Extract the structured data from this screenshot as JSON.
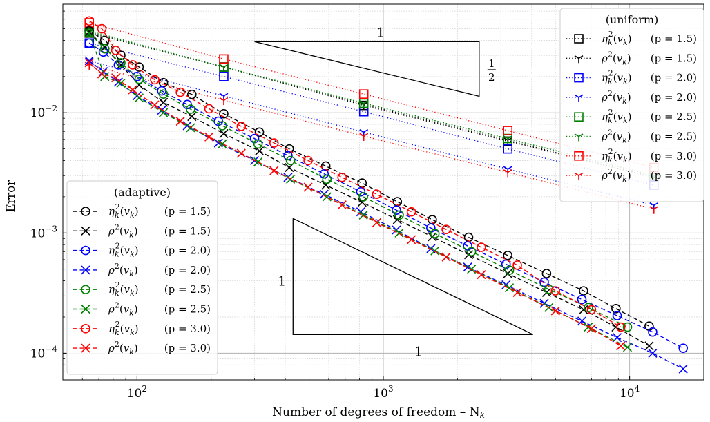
{
  "chart_data": {
    "type": "line",
    "xscale": "log",
    "yscale": "log",
    "xlim": [
      50,
      20000
    ],
    "ylim": [
      6e-05,
      0.08
    ],
    "grid": true,
    "xlabel": "Number of degrees of freedom – N",
    "xlabel_sub": "k",
    "ylabel": "Error",
    "x_ticks": [
      {
        "value": 100,
        "base": "10",
        "exp": "2"
      },
      {
        "value": 1000,
        "base": "10",
        "exp": "3"
      },
      {
        "value": 10000,
        "base": "10",
        "exp": "4"
      }
    ],
    "y_ticks": [
      {
        "value": 0.0001,
        "base": "10",
        "exp": "−4"
      },
      {
        "value": 0.001,
        "base": "10",
        "exp": "−3"
      },
      {
        "value": 0.01,
        "base": "10",
        "exp": "−2"
      }
    ],
    "uniform_legend": {
      "title": "(uniform)",
      "placement": "top-right",
      "entries": [
        {
          "label": "η_k²(v_k)",
          "p": "(p = 1.5)",
          "color": "#000000",
          "marker": "square"
        },
        {
          "label": "ρ²(v_k)",
          "p": "(p = 1.5)",
          "color": "#000000",
          "marker": "tri_down"
        },
        {
          "label": "η_k²(v_k)",
          "p": "(p = 2.0)",
          "color": "#0000ff",
          "marker": "square"
        },
        {
          "label": "ρ²(v_k)",
          "p": "(p = 2.0)",
          "color": "#0000ff",
          "marker": "tri_down"
        },
        {
          "label": "η_k²(v_k)",
          "p": "(p = 2.5)",
          "color": "#008000",
          "marker": "square"
        },
        {
          "label": "ρ²(v_k)",
          "p": "(p = 2.5)",
          "color": "#008000",
          "marker": "tri_down"
        },
        {
          "label": "η_k²(v_k)",
          "p": "(p = 3.0)",
          "color": "#ff0000",
          "marker": "square"
        },
        {
          "label": "ρ²(v_k)",
          "p": "(p = 3.0)",
          "color": "#ff0000",
          "marker": "tri_down"
        }
      ]
    },
    "adaptive_legend": {
      "title": "(adaptive)",
      "placement": "lower-left",
      "entries": [
        {
          "label": "η_k²(v_k)",
          "p": "(p = 1.5)",
          "color": "#000000",
          "marker": "circle"
        },
        {
          "label": "ρ²(v_k)",
          "p": "(p = 1.5)",
          "color": "#000000",
          "marker": "x"
        },
        {
          "label": "η_k²(v_k)",
          "p": "(p = 2.0)",
          "color": "#0000ff",
          "marker": "circle"
        },
        {
          "label": "ρ²(v_k)",
          "p": "(p = 2.0)",
          "color": "#0000ff",
          "marker": "x"
        },
        {
          "label": "η_k²(v_k)",
          "p": "(p = 2.5)",
          "color": "#008000",
          "marker": "circle"
        },
        {
          "label": "ρ²(v_k)",
          "p": "(p = 2.5)",
          "color": "#008000",
          "marker": "x"
        },
        {
          "label": "η_k²(v_k)",
          "p": "(p = 3.0)",
          "color": "#ff0000",
          "marker": "circle"
        },
        {
          "label": "ρ²(v_k)",
          "p": "(p = 3.0)",
          "color": "#ff0000",
          "marker": "x"
        }
      ]
    },
    "slope_triangles": [
      {
        "orientation": "upper",
        "run_label": "1",
        "rise_label": "1/2",
        "rise_num": "1",
        "rise_den": "2",
        "x": [
          300,
          2450
        ],
        "y": [
          0.039,
          0.0137
        ]
      },
      {
        "orientation": "lower",
        "run_label": "1",
        "rise_label": "1",
        "x": [
          430,
          4050
        ],
        "y": [
          0.00132,
          0.000143
        ]
      }
    ],
    "series": [
      {
        "kind": "uniform",
        "quantity": "eta",
        "p": "1.5",
        "color": "#000000",
        "marker": "square",
        "x": [
          64,
          225,
          833,
          3201,
          12545
        ],
        "y": [
          0.046,
          0.024,
          0.0115,
          0.0058,
          0.0029
        ]
      },
      {
        "kind": "uniform",
        "quantity": "rho",
        "p": "1.5",
        "color": "#000000",
        "marker": "tri_down",
        "x": [
          64,
          225,
          833,
          3201,
          12545
        ],
        "y": [
          0.047,
          0.024,
          0.0117,
          0.0059,
          0.0029
        ]
      },
      {
        "kind": "uniform",
        "quantity": "eta",
        "p": "2.0",
        "color": "#0000ff",
        "marker": "square",
        "x": [
          64,
          225,
          833,
          3201,
          12545
        ],
        "y": [
          0.038,
          0.02,
          0.0102,
          0.005,
          0.0025
        ]
      },
      {
        "kind": "uniform",
        "quantity": "rho",
        "p": "2.0",
        "color": "#0000ff",
        "marker": "tri_down",
        "x": [
          64,
          225,
          833,
          3201,
          12545
        ],
        "y": [
          0.027,
          0.0138,
          0.0069,
          0.0034,
          0.0017
        ]
      },
      {
        "kind": "uniform",
        "quantity": "eta",
        "p": "2.5",
        "color": "#008000",
        "marker": "square",
        "x": [
          64,
          225,
          833,
          3201,
          12545
        ],
        "y": [
          0.047,
          0.024,
          0.012,
          0.0061,
          0.003
        ]
      },
      {
        "kind": "uniform",
        "quantity": "rho",
        "p": "2.5",
        "color": "#008000",
        "marker": "tri_down",
        "x": [
          64,
          225,
          833,
          3201,
          12545
        ],
        "y": [
          0.048,
          0.024,
          0.012,
          0.0061,
          0.003
        ]
      },
      {
        "kind": "uniform",
        "quantity": "eta",
        "p": "3.0",
        "color": "#ff0000",
        "marker": "square",
        "x": [
          64,
          225,
          833,
          3201,
          12545
        ],
        "y": [
          0.056,
          0.028,
          0.0143,
          0.0071,
          0.0035
        ]
      },
      {
        "kind": "uniform",
        "quantity": "rho",
        "p": "3.0",
        "color": "#ff0000",
        "marker": "tri_down",
        "x": [
          64,
          225,
          833,
          3201,
          12545
        ],
        "y": [
          0.025,
          0.0127,
          0.0064,
          0.0032,
          0.00158
        ]
      },
      {
        "kind": "adaptive",
        "quantity": "eta",
        "p": "1.5",
        "color": "#000000",
        "marker": "circle",
        "x": [
          64,
          74,
          86,
          102,
          128,
          167,
          225,
          314,
          415,
          584,
          820,
          1140,
          1580,
          2220,
          3200,
          4600,
          6500,
          8800,
          12000
        ],
        "y": [
          0.048,
          0.04,
          0.03,
          0.024,
          0.0178,
          0.0142,
          0.0098,
          0.0069,
          0.005,
          0.0036,
          0.0026,
          0.00182,
          0.00129,
          0.00092,
          0.00065,
          0.00046,
          0.00033,
          0.000235,
          0.000168
        ]
      },
      {
        "kind": "adaptive",
        "quantity": "rho",
        "p": "1.5",
        "color": "#000000",
        "marker": "x",
        "x": [
          64,
          74,
          86,
          102,
          128,
          167,
          225,
          314,
          415,
          584,
          820,
          1140,
          1580,
          2220,
          3200,
          4600,
          6500,
          8800,
          12000
        ],
        "y": [
          0.047,
          0.035,
          0.025,
          0.017,
          0.0122,
          0.0093,
          0.0067,
          0.0048,
          0.0035,
          0.0025,
          0.0018,
          0.00129,
          0.00093,
          0.00066,
          0.00046,
          0.00032,
          0.00023,
          0.000165,
          0.000115
        ]
      },
      {
        "kind": "adaptive",
        "quantity": "eta",
        "p": "2.0",
        "color": "#0000ff",
        "marker": "circle",
        "x": [
          64,
          73,
          84,
          100,
          126,
          160,
          214,
          300,
          410,
          575,
          810,
          1130,
          1560,
          2200,
          3150,
          4500,
          6400,
          8900,
          12400,
          16500
        ],
        "y": [
          0.038,
          0.032,
          0.025,
          0.02,
          0.0152,
          0.0117,
          0.0085,
          0.0061,
          0.0044,
          0.0031,
          0.0022,
          0.00155,
          0.0011,
          0.00078,
          0.00055,
          0.00039,
          0.00028,
          0.000205,
          0.00015,
          0.00011
        ]
      },
      {
        "kind": "adaptive",
        "quantity": "rho",
        "p": "2.0",
        "color": "#0000ff",
        "marker": "x",
        "x": [
          64,
          73,
          84,
          100,
          126,
          160,
          214,
          300,
          410,
          575,
          810,
          1130,
          1560,
          2200,
          3150,
          4500,
          6400,
          8900,
          12400,
          16500
        ],
        "y": [
          0.027,
          0.022,
          0.018,
          0.0138,
          0.0105,
          0.0078,
          0.0056,
          0.004,
          0.0029,
          0.0021,
          0.0015,
          0.00106,
          0.00074,
          0.00052,
          0.00037,
          0.00026,
          0.000185,
          0.000135,
          0.0001,
          7.4e-05
        ]
      },
      {
        "kind": "adaptive",
        "quantity": "eta",
        "p": "2.5",
        "color": "#008000",
        "marker": "circle",
        "x": [
          64,
          74,
          86,
          102,
          128,
          165,
          222,
          310,
          420,
          590,
          830,
          1160,
          1620,
          2280,
          3250,
          4700,
          6800,
          9800
        ],
        "y": [
          0.046,
          0.034,
          0.026,
          0.019,
          0.0143,
          0.0107,
          0.0078,
          0.0055,
          0.004,
          0.0028,
          0.002,
          0.00141,
          0.00099,
          0.0007,
          0.00049,
          0.00034,
          0.00024,
          0.000165
        ]
      },
      {
        "kind": "adaptive",
        "quantity": "rho",
        "p": "2.5",
        "color": "#008000",
        "marker": "x",
        "x": [
          64,
          74,
          86,
          102,
          128,
          165,
          222,
          310,
          420,
          590,
          830,
          1160,
          1620,
          2280,
          3250,
          4700,
          6800,
          9800
        ],
        "y": [
          0.046,
          0.02,
          0.0176,
          0.0133,
          0.01,
          0.0075,
          0.0055,
          0.0039,
          0.0028,
          0.002,
          0.00141,
          0.001,
          0.00071,
          0.0005,
          0.00035,
          0.00024,
          0.000165,
          0.000112
        ]
      },
      {
        "kind": "adaptive",
        "quantity": "eta",
        "p": "3.0",
        "color": "#ff0000",
        "marker": "circle",
        "x": [
          64,
          72,
          82,
          96,
          118,
          150,
          196,
          265,
          360,
          495,
          680,
          940,
          1300,
          1800,
          2500,
          3500,
          5000,
          7000,
          9200
        ],
        "y": [
          0.058,
          0.05,
          0.033,
          0.025,
          0.0188,
          0.0148,
          0.0108,
          0.0077,
          0.0056,
          0.004,
          0.0029,
          0.0021,
          0.0015,
          0.00107,
          0.00076,
          0.00054,
          0.00033,
          0.00023,
          0.000165
        ]
      },
      {
        "kind": "adaptive",
        "quantity": "rho",
        "p": "3.0",
        "color": "#ff0000",
        "marker": "x",
        "x": [
          64,
          72,
          82,
          96,
          118,
          150,
          196,
          265,
          360,
          495,
          680,
          940,
          1300,
          1800,
          2500,
          3500,
          5000,
          7000,
          9200
        ],
        "y": [
          0.026,
          0.021,
          0.0195,
          0.0155,
          0.0116,
          0.0085,
          0.0063,
          0.0046,
          0.0033,
          0.0024,
          0.00171,
          0.00122,
          0.00088,
          0.00063,
          0.00045,
          0.00032,
          0.000225,
          0.00016,
          0.000115
        ]
      }
    ]
  }
}
